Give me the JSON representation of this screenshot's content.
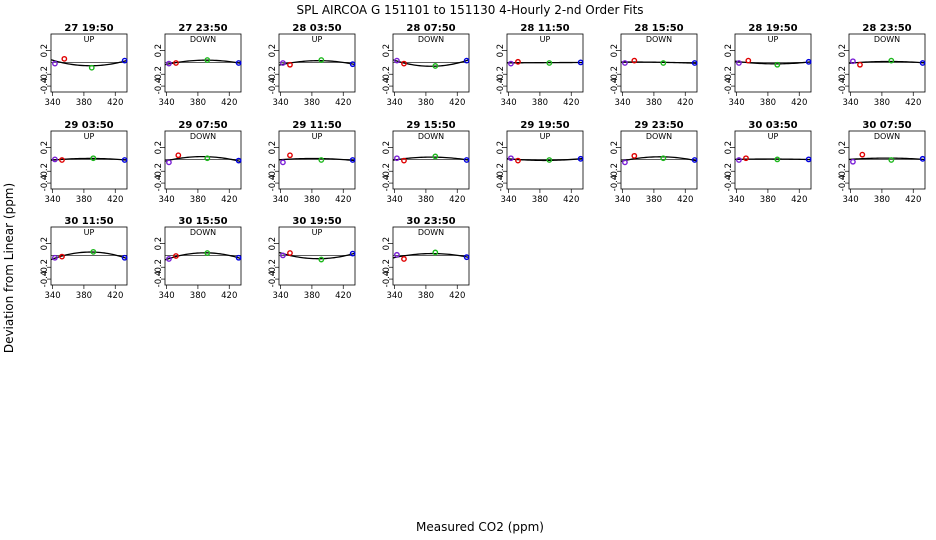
{
  "figure": {
    "title": "SPL   AIRCOA G   151101 to 151130   4-Hourly 2-nd Order Fits",
    "xlabel": "Measured CO2 (ppm)",
    "ylabel": "Deviation from Linear (ppm)"
  },
  "colors": {
    "fit_line": "#000000",
    "tank_low": "#7a1fd6",
    "tank_mid_low": "#e00000",
    "tank_mid_high": "#1db81d",
    "tank_high": "#0000e0"
  },
  "chart_data": {
    "type": "scatter",
    "x_ticks": [
      340,
      380,
      420
    ],
    "x_tick_labels": [
      "340",
      "380",
      "420"
    ],
    "y_ticks": [
      0.2,
      -0.2,
      -0.4
    ],
    "y_tick_labels": [
      "0.2",
      "-0.2",
      "-0.4"
    ],
    "xlim": [
      338,
      435
    ],
    "ylim": [
      -0.5,
      0.48
    ],
    "panels": [
      {
        "label": "27 19:50",
        "dir": "UP",
        "points": [
          {
            "x": 343,
            "y": -0.02
          },
          {
            "x": 355,
            "y": 0.06
          },
          {
            "x": 390,
            "y": -0.09
          },
          {
            "x": 432,
            "y": 0.03
          }
        ]
      },
      {
        "label": "27 23:50",
        "dir": "DOWN",
        "points": [
          {
            "x": 343,
            "y": -0.02
          },
          {
            "x": 352,
            "y": -0.01
          },
          {
            "x": 392,
            "y": 0.04
          },
          {
            "x": 432,
            "y": -0.01
          }
        ]
      },
      {
        "label": "28 03:50",
        "dir": "UP",
        "points": [
          {
            "x": 343,
            "y": -0.01
          },
          {
            "x": 352,
            "y": -0.04
          },
          {
            "x": 392,
            "y": 0.04
          },
          {
            "x": 432,
            "y": -0.03
          }
        ]
      },
      {
        "label": "28 07:50",
        "dir": "DOWN",
        "points": [
          {
            "x": 343,
            "y": 0.03
          },
          {
            "x": 352,
            "y": -0.02
          },
          {
            "x": 392,
            "y": -0.06
          },
          {
            "x": 432,
            "y": 0.03
          }
        ]
      },
      {
        "label": "28 11:50",
        "dir": "UP",
        "points": [
          {
            "x": 343,
            "y": -0.02
          },
          {
            "x": 352,
            "y": 0.01
          },
          {
            "x": 392,
            "y": -0.01
          },
          {
            "x": 432,
            "y": 0.0
          }
        ]
      },
      {
        "label": "28 15:50",
        "dir": "DOWN",
        "points": [
          {
            "x": 343,
            "y": -0.01
          },
          {
            "x": 355,
            "y": 0.03
          },
          {
            "x": 392,
            "y": -0.01
          },
          {
            "x": 432,
            "y": -0.01
          }
        ]
      },
      {
        "label": "28 19:50",
        "dir": "UP",
        "points": [
          {
            "x": 343,
            "y": -0.01
          },
          {
            "x": 355,
            "y": 0.03
          },
          {
            "x": 392,
            "y": -0.04
          },
          {
            "x": 432,
            "y": 0.01
          }
        ]
      },
      {
        "label": "28 23:50",
        "dir": "DOWN",
        "points": [
          {
            "x": 343,
            "y": 0.02
          },
          {
            "x": 352,
            "y": -0.04
          },
          {
            "x": 392,
            "y": 0.03
          },
          {
            "x": 432,
            "y": -0.01
          }
        ]
      },
      {
        "label": "29 03:50",
        "dir": "UP",
        "points": [
          {
            "x": 343,
            "y": 0.0
          },
          {
            "x": 352,
            "y": -0.01
          },
          {
            "x": 392,
            "y": 0.02
          },
          {
            "x": 432,
            "y": -0.01
          }
        ]
      },
      {
        "label": "29 07:50",
        "dir": "DOWN",
        "points": [
          {
            "x": 343,
            "y": -0.05
          },
          {
            "x": 355,
            "y": 0.07
          },
          {
            "x": 392,
            "y": 0.02
          },
          {
            "x": 432,
            "y": -0.02
          }
        ]
      },
      {
        "label": "29 11:50",
        "dir": "UP",
        "points": [
          {
            "x": 343,
            "y": -0.05
          },
          {
            "x": 352,
            "y": 0.07
          },
          {
            "x": 392,
            "y": -0.01
          },
          {
            "x": 432,
            "y": -0.01
          }
        ]
      },
      {
        "label": "29 15:50",
        "dir": "DOWN",
        "points": [
          {
            "x": 343,
            "y": 0.02
          },
          {
            "x": 352,
            "y": -0.02
          },
          {
            "x": 392,
            "y": 0.05
          },
          {
            "x": 432,
            "y": -0.01
          }
        ]
      },
      {
        "label": "29 19:50",
        "dir": "UP",
        "points": [
          {
            "x": 343,
            "y": 0.02
          },
          {
            "x": 352,
            "y": -0.02
          },
          {
            "x": 392,
            "y": -0.01
          },
          {
            "x": 432,
            "y": 0.01
          }
        ]
      },
      {
        "label": "29 23:50",
        "dir": "DOWN",
        "points": [
          {
            "x": 343,
            "y": -0.05
          },
          {
            "x": 355,
            "y": 0.06
          },
          {
            "x": 392,
            "y": 0.02
          },
          {
            "x": 432,
            "y": -0.01
          }
        ]
      },
      {
        "label": "30 03:50",
        "dir": "UP",
        "points": [
          {
            "x": 343,
            "y": -0.01
          },
          {
            "x": 352,
            "y": 0.02
          },
          {
            "x": 392,
            "y": 0.0
          },
          {
            "x": 432,
            "y": 0.0
          }
        ]
      },
      {
        "label": "30 07:50",
        "dir": "DOWN",
        "points": [
          {
            "x": 343,
            "y": -0.04
          },
          {
            "x": 355,
            "y": 0.08
          },
          {
            "x": 392,
            "y": -0.01
          },
          {
            "x": 432,
            "y": 0.01
          }
        ]
      },
      {
        "label": "30 11:50",
        "dir": "UP",
        "points": [
          {
            "x": 343,
            "y": -0.04
          },
          {
            "x": 352,
            "y": -0.02
          },
          {
            "x": 392,
            "y": 0.06
          },
          {
            "x": 432,
            "y": -0.04
          }
        ]
      },
      {
        "label": "30 15:50",
        "dir": "DOWN",
        "points": [
          {
            "x": 343,
            "y": -0.06
          },
          {
            "x": 352,
            "y": -0.01
          },
          {
            "x": 392,
            "y": 0.04
          },
          {
            "x": 432,
            "y": -0.04
          }
        ]
      },
      {
        "label": "30 19:50",
        "dir": "UP",
        "points": [
          {
            "x": 343,
            "y": 0.0
          },
          {
            "x": 352,
            "y": 0.04
          },
          {
            "x": 392,
            "y": -0.07
          },
          {
            "x": 432,
            "y": 0.03
          }
        ]
      },
      {
        "label": "30 23:50",
        "dir": "DOWN",
        "points": [
          {
            "x": 343,
            "y": 0.01
          },
          {
            "x": 352,
            "y": -0.06
          },
          {
            "x": 392,
            "y": 0.05
          },
          {
            "x": 432,
            "y": -0.03
          }
        ]
      }
    ]
  }
}
